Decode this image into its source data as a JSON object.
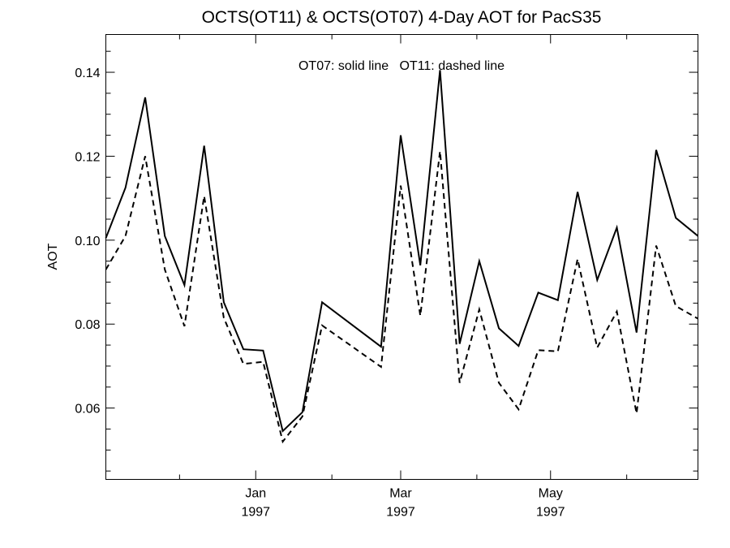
{
  "chart_data": {
    "type": "line",
    "title": "OCTS(OT11) & OCTS(OT07) 4-Day AOT for PacS35",
    "annotation": "OT07: solid line   OT11: dashed line",
    "xlabel": "",
    "ylabel": "AOT",
    "x_axis": {
      "type": "date",
      "range": [
        "1996-11-01",
        "1997-06-30"
      ],
      "major_ticks": [
        {
          "date": "1997-01-01",
          "label_top": "Jan",
          "label_bottom": "1997"
        },
        {
          "date": "1997-03-01",
          "label_top": "Mar",
          "label_bottom": "1997"
        },
        {
          "date": "1997-05-01",
          "label_top": "May",
          "label_bottom": "1997"
        }
      ],
      "minor_ticks": [
        "1996-12-01",
        "1997-02-01",
        "1997-04-01",
        "1997-06-01"
      ]
    },
    "y_axis": {
      "range": [
        0.043,
        0.149
      ],
      "major_ticks": [
        0.06,
        0.08,
        0.1,
        0.12,
        0.14
      ],
      "tick_labels": [
        "0.06",
        "0.08",
        "0.10",
        "0.12",
        "0.14"
      ],
      "minor_step": 0.005
    },
    "grid": false,
    "x": [
      "1996-11-01",
      "1996-11-09",
      "1996-11-17",
      "1996-11-25",
      "1996-12-03",
      "1996-12-11",
      "1996-12-19",
      "1996-12-27",
      "1997-01-04",
      "1997-01-12",
      "1997-01-20",
      "1997-01-28",
      "1997-02-21",
      "1997-03-01",
      "1997-03-09",
      "1997-03-17",
      "1997-03-25",
      "1997-04-02",
      "1997-04-10",
      "1997-04-18",
      "1997-04-26",
      "1997-05-04",
      "1997-05-12",
      "1997-05-20",
      "1997-05-28",
      "1997-06-05",
      "1997-06-13",
      "1997-06-21"
    ],
    "series": [
      {
        "name": "OT07",
        "style": "solid",
        "values": [
          0.1005,
          0.1125,
          0.134,
          0.101,
          0.0893,
          0.1225,
          0.0852,
          0.074,
          0.0737,
          0.0545,
          0.059,
          0.0852,
          0.0746,
          0.125,
          0.094,
          0.1405,
          0.0753,
          0.095,
          0.079,
          0.0748,
          0.0875,
          0.0857,
          0.1115,
          0.0905,
          0.103,
          0.078,
          0.1215,
          0.1053
        ]
      },
      {
        "name": "OT11",
        "style": "dashed",
        "values": [
          0.093,
          0.101,
          0.12,
          0.093,
          0.0795,
          0.1105,
          0.0815,
          0.0705,
          0.071,
          0.052,
          0.058,
          0.0797,
          0.0698,
          0.113,
          0.082,
          0.1212,
          0.066,
          0.0835,
          0.066,
          0.0597,
          0.0738,
          0.0735,
          0.0955,
          0.0744,
          0.083,
          0.0587,
          0.0987,
          0.0843
        ]
      }
    ],
    "end_values": {
      "OT07": 0.101,
      "OT11": 0.0813
    }
  }
}
